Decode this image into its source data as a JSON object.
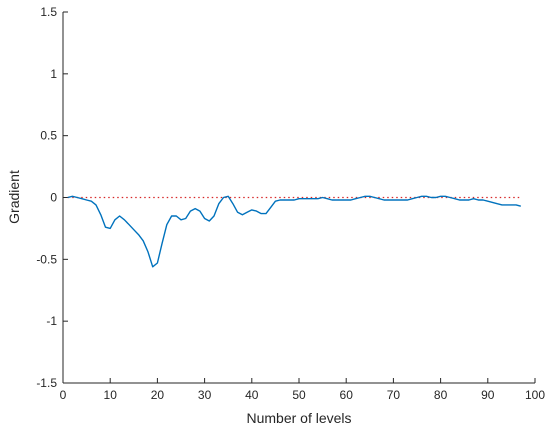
{
  "chart_data": {
    "type": "line",
    "xlabel": "Number of levels",
    "ylabel": "Gradient",
    "xlim": [
      0,
      100
    ],
    "ylim": [
      -1.5,
      1.5
    ],
    "xticks": [
      0,
      10,
      20,
      30,
      40,
      50,
      60,
      70,
      80,
      90,
      100
    ],
    "yticks": [
      1.5,
      1,
      0.5,
      0,
      -0.5,
      -1,
      -1.5
    ],
    "ytick_labels": [
      "1.5",
      "1",
      "0.5",
      "0",
      "-0.5",
      "-1",
      "-1.5"
    ],
    "grid": false,
    "legend": "none",
    "series": [
      {
        "color": "#0072bd",
        "x": [
          1,
          2,
          3,
          4,
          5,
          6,
          7,
          8,
          9,
          10,
          11,
          12,
          13,
          14,
          15,
          16,
          17,
          18,
          19,
          20,
          21,
          22,
          23,
          24,
          25,
          26,
          27,
          28,
          29,
          30,
          31,
          32,
          33,
          34,
          35,
          36,
          37,
          38,
          39,
          40,
          41,
          42,
          43,
          44,
          45,
          46,
          47,
          48,
          49,
          50,
          51,
          52,
          53,
          54,
          55,
          56,
          57,
          58,
          59,
          60,
          61,
          62,
          63,
          64,
          65,
          66,
          67,
          68,
          69,
          70,
          71,
          72,
          73,
          74,
          75,
          76,
          77,
          78,
          79,
          80,
          81,
          82,
          83,
          84,
          85,
          86,
          87,
          88,
          89,
          90,
          91,
          92,
          93,
          94,
          95,
          96,
          97
        ],
        "y": [
          0.0,
          0.01,
          0.0,
          -0.01,
          -0.02,
          -0.03,
          -0.06,
          -0.14,
          -0.24,
          -0.25,
          -0.18,
          -0.15,
          -0.18,
          -0.22,
          -0.26,
          -0.3,
          -0.35,
          -0.44,
          -0.56,
          -0.53,
          -0.37,
          -0.22,
          -0.15,
          -0.15,
          -0.18,
          -0.17,
          -0.11,
          -0.09,
          -0.11,
          -0.17,
          -0.19,
          -0.15,
          -0.05,
          0.0,
          0.01,
          -0.05,
          -0.12,
          -0.14,
          -0.12,
          -0.1,
          -0.11,
          -0.13,
          -0.13,
          -0.08,
          -0.03,
          -0.02,
          -0.02,
          -0.02,
          -0.02,
          -0.01,
          -0.01,
          -0.01,
          -0.01,
          -0.01,
          0.0,
          -0.01,
          -0.02,
          -0.02,
          -0.02,
          -0.02,
          -0.02,
          -0.01,
          0.0,
          0.01,
          0.01,
          0.0,
          -0.01,
          -0.02,
          -0.02,
          -0.02,
          -0.02,
          -0.02,
          -0.02,
          -0.01,
          0.0,
          0.01,
          0.01,
          0.0,
          0.0,
          0.01,
          0.01,
          0.0,
          -0.01,
          -0.02,
          -0.02,
          -0.02,
          -0.01,
          -0.02,
          -0.02,
          -0.03,
          -0.04,
          -0.05,
          -0.06,
          -0.06,
          -0.06,
          -0.06,
          -0.07
        ]
      }
    ],
    "reference_line": {
      "y": 0,
      "style": "dotted",
      "color": "#d62728"
    }
  }
}
